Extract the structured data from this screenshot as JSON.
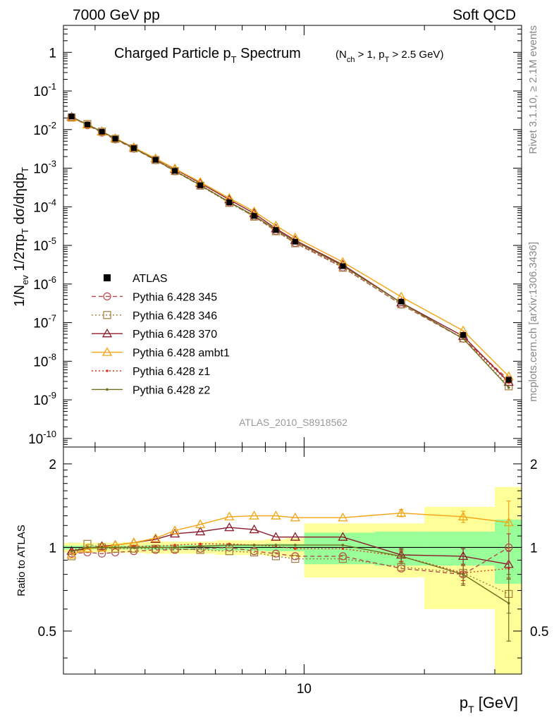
{
  "header": {
    "left": "7000 GeV pp",
    "right": "Soft QCD"
  },
  "side_labels": {
    "rivet": "Rivet 3.1.10, ≥ 2.1M events",
    "mcplots": "mcplots.cern.ch [arXiv:1306.3436]"
  },
  "analysis_tag": "ATLAS_2010_S8918562",
  "chart_data": [
    {
      "type": "line",
      "panel": "main",
      "title": "Charged Particle p_T Spectrum",
      "title_sub": "(N_ch > 1, p_T > 2.5 GeV)",
      "xlabel": "",
      "ylabel": "1/N_ev 1/2πp_T dσ/dηdp_T",
      "xscale": "log",
      "yscale": "log",
      "xlim": [
        2.5,
        35
      ],
      "ylim": [
        6e-11,
        5
      ],
      "y_ticks": [
        "1",
        "10^-1",
        "10^-2",
        "10^-3",
        "10^-4",
        "10^-5",
        "10^-6",
        "10^-7",
        "10^-8",
        "10^-9",
        "10^-10"
      ],
      "legend_position": "left-middle",
      "x": [
        2.62,
        2.87,
        3.12,
        3.37,
        3.75,
        4.25,
        4.75,
        5.5,
        6.5,
        7.5,
        8.5,
        9.5,
        12.5,
        17.5,
        25.0,
        32.5
      ],
      "data": {
        "name": "ATLAS",
        "values": [
          0.022,
          0.0135,
          0.0088,
          0.0058,
          0.0033,
          0.00165,
          0.00085,
          0.00036,
          0.00013,
          5.8e-05,
          2.5e-05,
          1.25e-05,
          2.9e-06,
          3.5e-07,
          4.8e-08,
          3.3e-09
        ]
      },
      "series": [
        {
          "name": "Pythia 6.428 345",
          "color": "#b5474f",
          "dash": "6,4",
          "marker": "circle",
          "ratio": [
            0.95,
            0.96,
            0.95,
            0.96,
            0.97,
            0.98,
            0.98,
            0.99,
            1.0,
            0.97,
            0.95,
            0.93,
            0.93,
            0.84,
            0.8,
            1.0
          ]
        },
        {
          "name": "Pythia 6.428 346",
          "color": "#a37b3a",
          "dash": "2,3",
          "marker": "square",
          "ratio": [
            0.93,
            1.03,
            1.0,
            0.99,
            0.99,
            0.99,
            0.99,
            0.98,
            0.97,
            0.96,
            0.93,
            0.91,
            0.91,
            0.85,
            0.81,
            0.68
          ]
        },
        {
          "name": "Pythia 6.428 370",
          "color": "#8c1c2c",
          "dash": "",
          "marker": "triangle",
          "ratio": [
            0.97,
            0.99,
            1.01,
            1.02,
            1.04,
            1.07,
            1.12,
            1.14,
            1.18,
            1.16,
            1.09,
            1.09,
            1.09,
            0.94,
            0.93,
            0.87
          ]
        },
        {
          "name": "Pythia 6.428 ambt1",
          "color": "#f4a313",
          "dash": "",
          "marker": "triangle",
          "ratio": [
            0.94,
            0.99,
            1.0,
            1.02,
            1.04,
            1.08,
            1.15,
            1.21,
            1.29,
            1.3,
            1.3,
            1.28,
            1.28,
            1.33,
            1.29,
            1.23
          ]
        },
        {
          "name": "Pythia 6.428 z1",
          "color": "#e0341f",
          "dash": "2,3",
          "marker": "dot",
          "ratio": [
            0.98,
            1.0,
            1.0,
            1.0,
            1.01,
            1.01,
            1.02,
            1.03,
            1.03,
            1.02,
            1.01,
            0.99,
            0.99,
            0.93,
            0.81,
            0.84
          ]
        },
        {
          "name": "Pythia 6.428 z2",
          "color": "#6f6e1e",
          "dash": "",
          "marker": "dot",
          "ratio": [
            0.97,
            1.0,
            1.0,
            1.0,
            1.0,
            1.0,
            1.0,
            1.01,
            1.02,
            1.02,
            1.02,
            1.02,
            1.02,
            0.93,
            0.8,
            0.63
          ]
        }
      ]
    },
    {
      "type": "line",
      "panel": "ratio",
      "xlabel": "p_T [GeV]",
      "ylabel": "Ratio to ATLAS",
      "xscale": "log",
      "xlim": [
        2.5,
        35
      ],
      "ylim": [
        0.35,
        2.3
      ],
      "y_ticks": [
        0.5,
        1,
        2
      ],
      "x_ticks_labeled": [
        10
      ],
      "band_note": "yellow = total uncertainty, green = statistical",
      "bins": [
        {
          "lo": 2.5,
          "hi": 2.75,
          "stat": 0.015,
          "tot": 0.04
        },
        {
          "lo": 2.75,
          "hi": 3.0,
          "stat": 0.015,
          "tot": 0.04
        },
        {
          "lo": 3.0,
          "hi": 3.25,
          "stat": 0.015,
          "tot": 0.04
        },
        {
          "lo": 3.25,
          "hi": 3.5,
          "stat": 0.015,
          "tot": 0.04
        },
        {
          "lo": 3.5,
          "hi": 4.0,
          "stat": 0.015,
          "tot": 0.045
        },
        {
          "lo": 4.0,
          "hi": 4.5,
          "stat": 0.02,
          "tot": 0.05
        },
        {
          "lo": 4.5,
          "hi": 5.0,
          "stat": 0.02,
          "tot": 0.05
        },
        {
          "lo": 5.0,
          "hi": 6.0,
          "stat": 0.02,
          "tot": 0.05
        },
        {
          "lo": 6.0,
          "hi": 7.0,
          "stat": 0.025,
          "tot": 0.06
        },
        {
          "lo": 7.0,
          "hi": 8.0,
          "stat": 0.025,
          "tot": 0.06
        },
        {
          "lo": 8.0,
          "hi": 9.0,
          "stat": 0.03,
          "tot": 0.07
        },
        {
          "lo": 9.0,
          "hi": 10.0,
          "stat": 0.03,
          "tot": 0.08
        },
        {
          "lo": 10.0,
          "hi": 15.0,
          "stat": 0.13,
          "tot": 0.22
        },
        {
          "lo": 15.0,
          "hi": 20.0,
          "stat": 0.14,
          "tot": 0.22
        },
        {
          "lo": 20.0,
          "hi": 30.0,
          "stat": 0.14,
          "tot": 0.4
        },
        {
          "lo": 30.0,
          "hi": 35.0,
          "stat": 0.26,
          "tot": 0.65
        }
      ],
      "errors": [
        {
          "series": "Pythia 6.428 ambt1",
          "x": 17.5,
          "err": 0.04
        },
        {
          "series": "Pythia 6.428 ambt1",
          "x": 25.0,
          "err": 0.06
        },
        {
          "series": "Pythia 6.428 ambt1",
          "x": 32.5,
          "err": 0.24
        },
        {
          "series": "Pythia 6.428 370",
          "x": 17.5,
          "err": 0.05
        },
        {
          "series": "Pythia 6.428 370",
          "x": 25.0,
          "err": 0.06
        },
        {
          "series": "Pythia 6.428 370",
          "x": 32.5,
          "err": 0.1
        },
        {
          "series": "Pythia 6.428 345",
          "x": 25.0,
          "err": 0.06
        },
        {
          "series": "Pythia 6.428 345",
          "x": 32.5,
          "err": 0.12
        },
        {
          "series": "Pythia 6.428 346",
          "x": 32.5,
          "err": 0.1
        },
        {
          "series": "Pythia 6.428 z1",
          "x": 17.5,
          "err": 0.04
        },
        {
          "series": "Pythia 6.428 z1",
          "x": 25.0,
          "err": 0.05
        },
        {
          "series": "Pythia 6.428 z2",
          "x": 17.5,
          "err": 0.05
        },
        {
          "series": "Pythia 6.428 z2",
          "x": 25.0,
          "err": 0.07
        },
        {
          "series": "Pythia 6.428 z2",
          "x": 32.5,
          "err": 0.17
        }
      ]
    }
  ]
}
